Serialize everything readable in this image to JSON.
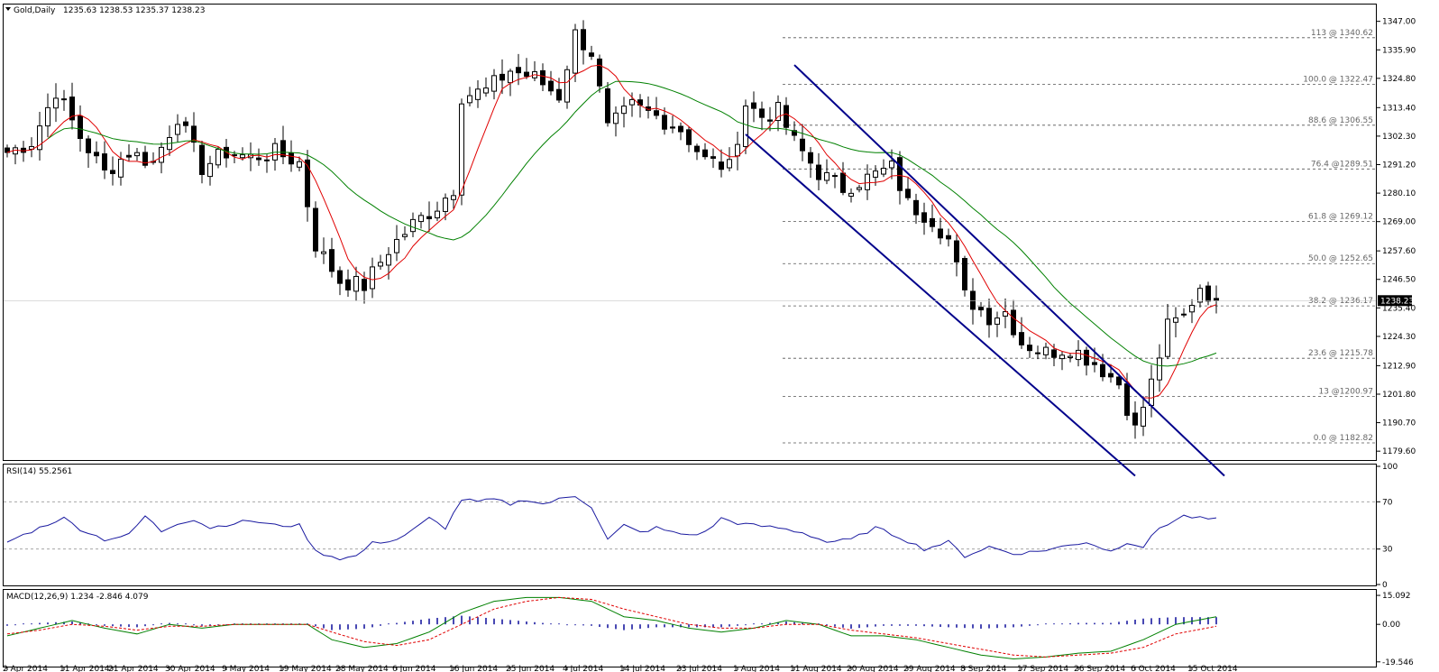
{
  "header": {
    "symbol": "Gold,Daily",
    "ohlc": "1235.63 1238.53 1235.37 1238.23"
  },
  "chart_data": [
    {
      "type": "candlestick",
      "title": "Gold,Daily",
      "ylim": [
        1176.5,
        1352.5
      ],
      "y_ticks": [
        "1347.00",
        "1335.90",
        "1324.80",
        "1313.40",
        "1302.30",
        "1291.20",
        "1280.10",
        "1269.00",
        "1257.60",
        "1246.50",
        "1235.40",
        "1224.30",
        "1212.90",
        "1201.80",
        "1190.70",
        "1179.60"
      ],
      "x_ticks": [
        {
          "label": "2 Apr 2014",
          "i": 0
        },
        {
          "label": "11 Apr 2014",
          "i": 7
        },
        {
          "label": "21 Apr 2014",
          "i": 13
        },
        {
          "label": "30 Apr 2014",
          "i": 20
        },
        {
          "label": "9 May 2014",
          "i": 27
        },
        {
          "label": "19 May 2014",
          "i": 34
        },
        {
          "label": "28 May 2014",
          "i": 41
        },
        {
          "label": "6 Jun 2014",
          "i": 48
        },
        {
          "label": "16 Jun 2014",
          "i": 55
        },
        {
          "label": "25 Jun 2014",
          "i": 62
        },
        {
          "label": "4 Jul 2014",
          "i": 69
        },
        {
          "label": "14 Jul 2014",
          "i": 76
        },
        {
          "label": "23 Jul 2014",
          "i": 83
        },
        {
          "label": "1 Aug 2014",
          "i": 90
        },
        {
          "label": "11 Aug 2014",
          "i": 97
        },
        {
          "label": "20 Aug 2014",
          "i": 104
        },
        {
          "label": "29 Aug 2014",
          "i": 111
        },
        {
          "label": "8 Sep 2014",
          "i": 118
        },
        {
          "label": "17 Sep 2014",
          "i": 125
        },
        {
          "label": "26 Sep 2014",
          "i": 132
        },
        {
          "label": "6 Oct 2014",
          "i": 139
        },
        {
          "label": "15 Oct 2014",
          "i": 146
        }
      ],
      "last_price": "1238.23",
      "fibonacci": [
        {
          "label": "113 @ 1340.62",
          "value": 1340.62
        },
        {
          "label": "100.0 @ 1322.47",
          "value": 1322.47
        },
        {
          "label": "88.6 @ 1306.55",
          "value": 1306.55
        },
        {
          "label": "76.4 @1289.51",
          "value": 1289.51
        },
        {
          "label": "61.8 @ 1269.12",
          "value": 1269.12
        },
        {
          "label": "50.0 @ 1252.65",
          "value": 1252.65
        },
        {
          "label": "38.2 @ 1236.17",
          "value": 1236.17
        },
        {
          "label": "23.6 @ 1215.78",
          "value": 1215.78
        },
        {
          "label": "13 @1200.97",
          "value": 1200.97
        },
        {
          "label": "0.0 @ 1182.82",
          "value": 1182.82
        }
      ],
      "channel": {
        "upper": [
          [
            97,
            1330
          ],
          [
            150,
            1170
          ]
        ],
        "lower": [
          [
            91,
            1303
          ],
          [
            139,
            1170
          ]
        ]
      },
      "close_anchors": [
        [
          0,
          1296
        ],
        [
          3,
          1300
        ],
        [
          6,
          1320
        ],
        [
          9,
          1302
        ],
        [
          12,
          1288
        ],
        [
          15,
          1296
        ],
        [
          18,
          1292
        ],
        [
          21,
          1310
        ],
        [
          24,
          1290
        ],
        [
          27,
          1296
        ],
        [
          30,
          1294
        ],
        [
          33,
          1296
        ],
        [
          36,
          1292
        ],
        [
          38,
          1260
        ],
        [
          41,
          1246
        ],
        [
          44,
          1244
        ],
        [
          47,
          1258
        ],
        [
          50,
          1268
        ],
        [
          53,
          1275
        ],
        [
          55,
          1282
        ],
        [
          56,
          1318
        ],
        [
          59,
          1320
        ],
        [
          62,
          1328
        ],
        [
          65,
          1325
        ],
        [
          68,
          1318
        ],
        [
          70,
          1342
        ],
        [
          72,
          1335
        ],
        [
          74,
          1305
        ],
        [
          77,
          1314
        ],
        [
          80,
          1310
        ],
        [
          83,
          1305
        ],
        [
          86,
          1293
        ],
        [
          89,
          1290
        ],
        [
          91,
          1315
        ],
        [
          93,
          1310
        ],
        [
          95,
          1312
        ],
        [
          97,
          1300
        ],
        [
          100,
          1288
        ],
        [
          103,
          1282
        ],
        [
          106,
          1286
        ],
        [
          109,
          1290
        ],
        [
          111,
          1276
        ],
        [
          114,
          1270
        ],
        [
          116,
          1262
        ],
        [
          118,
          1240
        ],
        [
          121,
          1232
        ],
        [
          123,
          1234
        ],
        [
          125,
          1222
        ],
        [
          128,
          1218
        ],
        [
          131,
          1220
        ],
        [
          134,
          1214
        ],
        [
          137,
          1206
        ],
        [
          139,
          1188
        ],
        [
          141,
          1206
        ],
        [
          143,
          1228
        ],
        [
          145,
          1232
        ],
        [
          147,
          1244
        ],
        [
          149,
          1238
        ]
      ]
    },
    {
      "type": "line",
      "title": "RSI(14) 55.2561",
      "ylim": [
        0,
        100
      ],
      "y_ticks": [
        "100",
        "70",
        "30",
        "0"
      ],
      "levels": [
        70,
        30
      ],
      "anchors": [
        [
          0,
          36
        ],
        [
          3,
          45
        ],
        [
          6,
          54
        ],
        [
          7,
          56
        ],
        [
          9,
          47
        ],
        [
          12,
          38
        ],
        [
          15,
          42
        ],
        [
          17,
          58
        ],
        [
          19,
          45
        ],
        [
          21,
          52
        ],
        [
          23,
          55
        ],
        [
          25,
          48
        ],
        [
          28,
          52
        ],
        [
          30,
          54
        ],
        [
          33,
          50
        ],
        [
          36,
          50
        ],
        [
          38,
          28
        ],
        [
          41,
          22
        ],
        [
          43,
          24
        ],
        [
          45,
          35
        ],
        [
          48,
          38
        ],
        [
          50,
          46
        ],
        [
          52,
          56
        ],
        [
          54,
          48
        ],
        [
          56,
          72
        ],
        [
          58,
          70
        ],
        [
          60,
          72
        ],
        [
          62,
          68
        ],
        [
          64,
          72
        ],
        [
          66,
          68
        ],
        [
          68,
          72
        ],
        [
          70,
          75
        ],
        [
          72,
          66
        ],
        [
          74,
          38
        ],
        [
          76,
          50
        ],
        [
          78,
          44
        ],
        [
          80,
          48
        ],
        [
          82,
          44
        ],
        [
          84,
          42
        ],
        [
          86,
          44
        ],
        [
          88,
          56
        ],
        [
          90,
          52
        ],
        [
          92,
          50
        ],
        [
          95,
          48
        ],
        [
          98,
          44
        ],
        [
          101,
          36
        ],
        [
          104,
          38
        ],
        [
          107,
          48
        ],
        [
          110,
          40
        ],
        [
          113,
          30
        ],
        [
          116,
          36
        ],
        [
          118,
          24
        ],
        [
          121,
          32
        ],
        [
          124,
          26
        ],
        [
          127,
          28
        ],
        [
          130,
          32
        ],
        [
          133,
          36
        ],
        [
          136,
          28
        ],
        [
          138,
          36
        ],
        [
          140,
          32
        ],
        [
          142,
          48
        ],
        [
          145,
          58
        ],
        [
          147,
          56
        ],
        [
          149,
          55
        ]
      ]
    },
    {
      "type": "line",
      "title": "MACD(12,26,9) 1.234 -2.846 4.079",
      "ylim": [
        -22,
        17
      ],
      "y_ticks": [
        "15.092",
        "0.00",
        "-19.546"
      ],
      "macd_anchors": [
        [
          0,
          -6
        ],
        [
          4,
          -2
        ],
        [
          8,
          2
        ],
        [
          12,
          -2
        ],
        [
          16,
          -5
        ],
        [
          20,
          0
        ],
        [
          24,
          -2
        ],
        [
          28,
          0
        ],
        [
          33,
          0
        ],
        [
          37,
          0
        ],
        [
          40,
          -8
        ],
        [
          44,
          -12
        ],
        [
          48,
          -10
        ],
        [
          52,
          -4
        ],
        [
          56,
          6
        ],
        [
          60,
          12
        ],
        [
          64,
          14
        ],
        [
          68,
          14
        ],
        [
          72,
          12
        ],
        [
          76,
          4
        ],
        [
          80,
          2
        ],
        [
          84,
          -2
        ],
        [
          88,
          -4
        ],
        [
          92,
          -2
        ],
        [
          96,
          2
        ],
        [
          100,
          0
        ],
        [
          104,
          -6
        ],
        [
          108,
          -6
        ],
        [
          112,
          -8
        ],
        [
          116,
          -12
        ],
        [
          120,
          -16
        ],
        [
          124,
          -18
        ],
        [
          128,
          -17
        ],
        [
          132,
          -15
        ],
        [
          136,
          -14
        ],
        [
          140,
          -8
        ],
        [
          144,
          0
        ],
        [
          149,
          4
        ]
      ],
      "signal_anchors": [
        [
          0,
          -5
        ],
        [
          4,
          -3
        ],
        [
          8,
          0
        ],
        [
          12,
          -1
        ],
        [
          16,
          -3
        ],
        [
          20,
          -1
        ],
        [
          24,
          -1
        ],
        [
          28,
          0
        ],
        [
          33,
          0
        ],
        [
          37,
          0
        ],
        [
          40,
          -4
        ],
        [
          44,
          -9
        ],
        [
          48,
          -11
        ],
        [
          52,
          -8
        ],
        [
          56,
          0
        ],
        [
          60,
          8
        ],
        [
          64,
          12
        ],
        [
          68,
          14
        ],
        [
          72,
          13
        ],
        [
          76,
          8
        ],
        [
          80,
          4
        ],
        [
          84,
          0
        ],
        [
          88,
          -2
        ],
        [
          92,
          -2
        ],
        [
          96,
          0
        ],
        [
          100,
          0
        ],
        [
          104,
          -3
        ],
        [
          108,
          -5
        ],
        [
          112,
          -7
        ],
        [
          116,
          -10
        ],
        [
          120,
          -13
        ],
        [
          124,
          -16
        ],
        [
          128,
          -17
        ],
        [
          132,
          -16
        ],
        [
          136,
          -15
        ],
        [
          140,
          -12
        ],
        [
          144,
          -5
        ],
        [
          149,
          -1
        ]
      ]
    }
  ]
}
